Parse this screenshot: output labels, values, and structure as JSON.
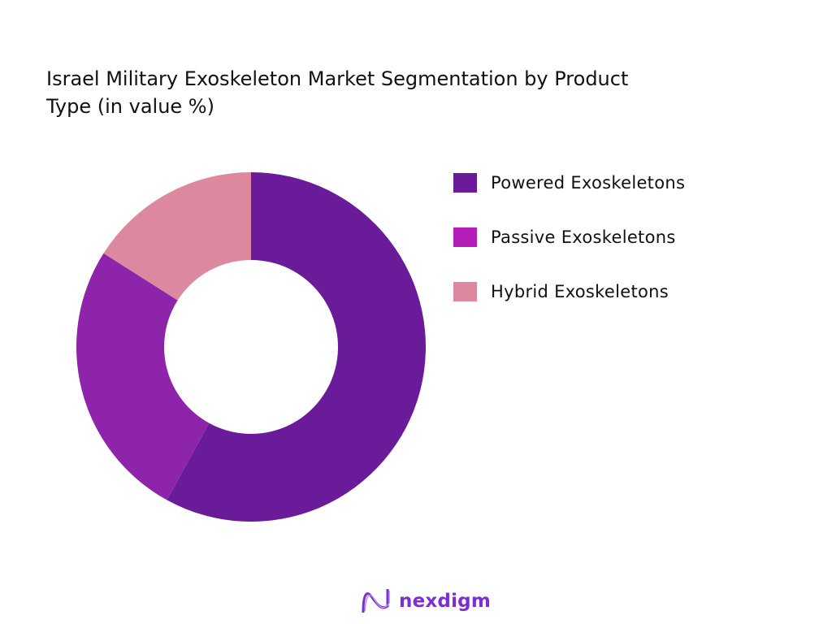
{
  "chart_data": {
    "type": "pie",
    "variant": "donut",
    "title": "Israel Military Exoskeleton Market Segmentation by Product Type (in value %)",
    "categories": [
      "Powered Exoskeletons",
      "Passive Exoskeletons",
      "Hybrid Exoskeletons"
    ],
    "values": [
      58,
      26,
      16
    ],
    "colors": [
      "#6a1b9a",
      "#8e24aa",
      "#dc889e"
    ],
    "legend_colors": [
      "#6a1b9a",
      "#b41fb9",
      "#dc889e"
    ],
    "legend": "right"
  },
  "logo": {
    "text": "nexdigm"
  }
}
